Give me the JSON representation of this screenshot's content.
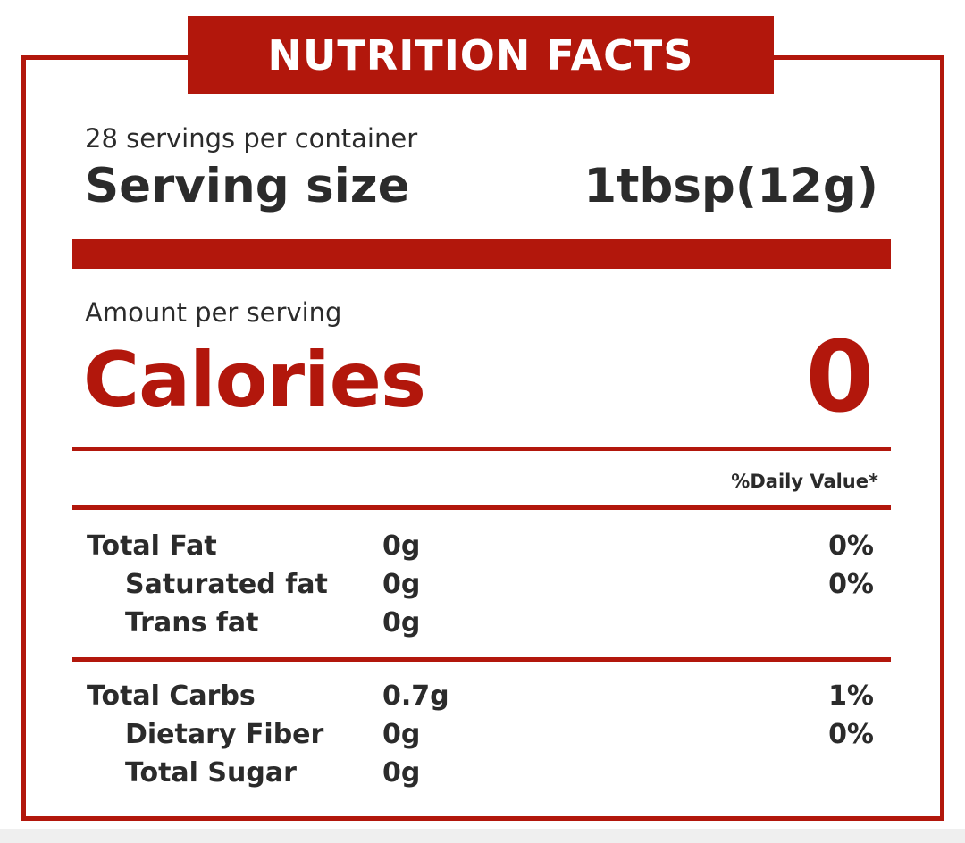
{
  "title": "NUTRITION FACTS",
  "servings_per_container": "28 servings per container",
  "serving_size": {
    "label": "Serving size",
    "value": "1tbsp(12g)"
  },
  "amount_per_serving": "Amount per serving",
  "calories": {
    "label": "Calories",
    "value": "0"
  },
  "daily_value_header": "%Daily Value*",
  "fat_group": [
    {
      "name": "Total Fat",
      "amount": "0g",
      "dv": "0%"
    },
    {
      "name": "Saturated fat",
      "amount": "0g",
      "dv": "0%"
    },
    {
      "name": "Trans fat",
      "amount": "0g",
      "dv": ""
    }
  ],
  "carb_group": [
    {
      "name": "Total Carbs",
      "amount": "0.7g",
      "dv": "1%"
    },
    {
      "name": "Dietary Fiber",
      "amount": "0g",
      "dv": "0%"
    },
    {
      "name": "Total Sugar",
      "amount": "0g",
      "dv": ""
    }
  ],
  "colors": {
    "accent": "#b2170c",
    "text": "#2b2b2b",
    "background": "#ffffff"
  }
}
